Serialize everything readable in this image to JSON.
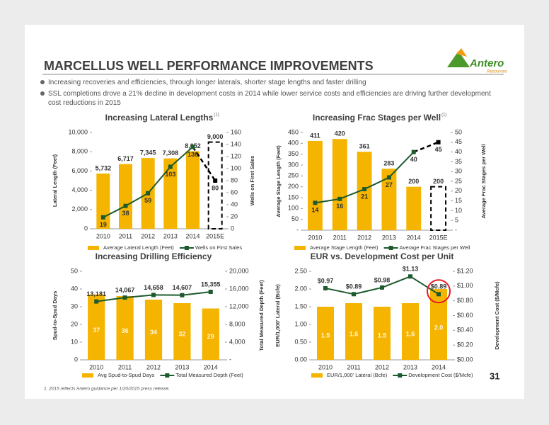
{
  "header": {
    "title": "MARCELLUS WELL PERFORMANCE IMPROVEMENTS",
    "logo": {
      "name": "Antero",
      "tagline": "Resources"
    }
  },
  "bullets": [
    "Increasing recoveries and efficiencies, through longer laterals, shorter stage lengths and faster drilling",
    "SSL completions drove a 21% decline in development costs in 2014 while lower service costs and efficiencies are driving further development cost reductions in 2015"
  ],
  "chart_data": [
    {
      "type": "bar",
      "title": "Increasing Lateral Lengths",
      "title_note": "(1)",
      "categories": [
        "2010",
        "2011",
        "2012",
        "2013",
        "2014",
        "2015E"
      ],
      "series": [
        {
          "name": "Average Lateral Length (Feet)",
          "type": "bar",
          "color": "#f5b400",
          "values": [
            5732,
            6717,
            7345,
            7308,
            8052,
            9000
          ],
          "value_labels": [
            "5,732",
            "6,717",
            "7,345",
            "7,308",
            "8,052",
            "9,000"
          ],
          "dashed_from": 5
        },
        {
          "name": "Wells on First Sales",
          "type": "line",
          "axis": "y2",
          "color": "#1d5a2c",
          "values": [
            19,
            38,
            59,
            103,
            136,
            80
          ],
          "dashed_from": 5
        }
      ],
      "ylabel": "Lateral Length (Feet)",
      "y2label": "Wells on First Sales",
      "ylim": [
        0,
        10000
      ],
      "yticks": [
        0,
        {
          "value": 2000,
          "label": "2,000"
        },
        {
          "value": 4000,
          "label": "4,000"
        },
        {
          "value": 6000,
          "label": "6,000"
        },
        {
          "value": 8000,
          "label": "8,000"
        },
        {
          "value": 10000,
          "label": "10,000"
        }
      ],
      "y2lim": [
        0,
        160
      ],
      "y2ticks": [
        0,
        20,
        40,
        60,
        80,
        100,
        120,
        140,
        160
      ]
    },
    {
      "type": "bar",
      "title": "Increasing Frac Stages per Well",
      "title_note": "(1)",
      "categories": [
        "2010",
        "2011",
        "2012",
        "2013",
        "2014",
        "2015E"
      ],
      "series": [
        {
          "name": "Average Stage Length (Feet)",
          "type": "bar",
          "color": "#f5b400",
          "values": [
            411,
            420,
            361,
            283,
            200,
            200
          ],
          "dashed_from": 5
        },
        {
          "name": "Average Frac Stages per Well",
          "type": "line",
          "axis": "y2",
          "color": "#1d5a2c",
          "values": [
            14,
            16,
            21,
            27,
            40,
            45
          ],
          "dashed_from": 5
        }
      ],
      "ylabel": "Average Stage Length (Feet)",
      "y2label": "Average Frac Stages per Well",
      "ylim": [
        0,
        450
      ],
      "yticks": [
        {
          "value": 0,
          "label": "-"
        },
        50,
        100,
        150,
        200,
        250,
        300,
        350,
        400,
        450
      ],
      "y2lim": [
        0,
        50
      ],
      "y2ticks": [
        {
          "value": 0,
          "label": "-"
        },
        5,
        10,
        15,
        20,
        25,
        30,
        35,
        40,
        45,
        50
      ]
    },
    {
      "type": "bar",
      "title": "Increasing Drilling Efficiency",
      "categories": [
        "2010",
        "2011",
        "2012",
        "2013",
        "2014"
      ],
      "series": [
        {
          "name": "Avg Spud-to-Spud Days",
          "type": "bar",
          "color": "#f5b400",
          "values": [
            37,
            36,
            34,
            32,
            29
          ]
        },
        {
          "name": "Total Measured Depth (Feet)",
          "type": "line",
          "axis": "y2",
          "color": "#1d5a2c",
          "values": [
            13181,
            14067,
            14658,
            14607,
            15355
          ],
          "value_labels": [
            "13,181",
            "14,067",
            "14,658",
            "14,607",
            "15,355"
          ]
        }
      ],
      "ylabel": "Spud-to-Spud Days",
      "y2label": "Total Measured Depth (Feet)",
      "ylim": [
        0,
        50
      ],
      "yticks": [
        0,
        10,
        20,
        30,
        40,
        50
      ],
      "y2lim": [
        0,
        20000
      ],
      "y2ticks": [
        {
          "value": 0,
          "label": "-"
        },
        {
          "value": 4000,
          "label": "4,000"
        },
        {
          "value": 8000,
          "label": "8,000"
        },
        {
          "value": 12000,
          "label": "12,000"
        },
        {
          "value": 16000,
          "label": "16,000"
        },
        {
          "value": 20000,
          "label": "20,000"
        }
      ]
    },
    {
      "type": "bar",
      "title": "EUR vs. Development Cost per Unit",
      "categories": [
        "2010",
        "2011",
        "2012",
        "2013",
        "2014"
      ],
      "series": [
        {
          "name": "EUR/1,000' Lateral (Bcfe)",
          "type": "bar",
          "color": "#f5b400",
          "values": [
            1.5,
            1.6,
            1.5,
            1.6,
            2.0
          ],
          "value_labels": [
            "1.5",
            "1.6",
            "1.5",
            "1.6",
            "2.0"
          ]
        },
        {
          "name": "Development Cost ($/Mcfe)",
          "type": "line",
          "axis": "y2",
          "color": "#1d5a2c",
          "values": [
            0.97,
            0.89,
            0.98,
            1.13,
            0.89
          ],
          "value_labels": [
            "$0.97",
            "$0.89",
            "$0.98",
            "$1.13",
            "$0.89"
          ]
        }
      ],
      "ylabel": "EUR/1,000' Lateral (Bcfe)",
      "y2label": "Development Cost ($/Mcfe)",
      "ylim": [
        0,
        2.5
      ],
      "yticks": [
        {
          "value": 0,
          "label": "0.00"
        },
        {
          "value": 0.5,
          "label": "0.50"
        },
        {
          "value": 1,
          "label": "1.00"
        },
        {
          "value": 1.5,
          "label": "1.50"
        },
        {
          "value": 2,
          "label": "2.00"
        },
        {
          "value": 2.5,
          "label": "2.50"
        }
      ],
      "y2lim": [
        0,
        1.2
      ],
      "y2ticks": [
        {
          "value": 0,
          "label": "$0.00"
        },
        {
          "value": 0.2,
          "label": "$0.20"
        },
        {
          "value": 0.4,
          "label": "$0.40"
        },
        {
          "value": 0.6,
          "label": "$0.60"
        },
        {
          "value": 0.8,
          "label": "$0.80"
        },
        {
          "value": 1,
          "label": "$1.00"
        },
        {
          "value": 1.2,
          "label": "$1.20"
        }
      ]
    }
  ],
  "footnote": "1.  2015 reflects Antero guidance per 1/20/2015 press release.",
  "page_number": "31"
}
